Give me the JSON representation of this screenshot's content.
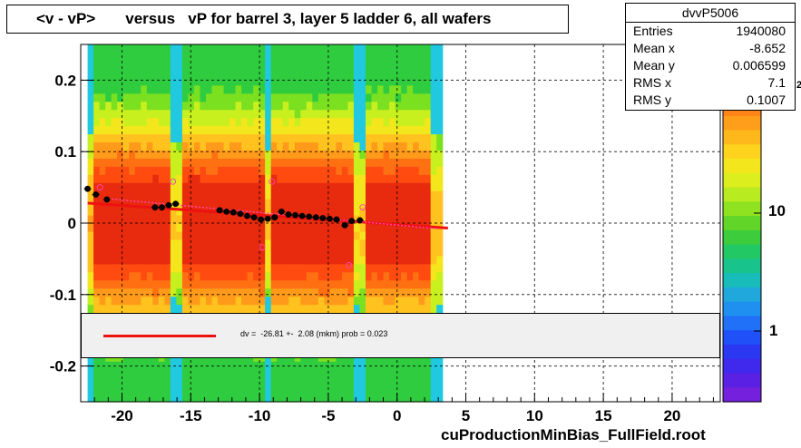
{
  "title": "<v - vP>       versus   vP for barrel 3, layer 5 ladder 6, all wafers",
  "stats": {
    "name": "dvvP5006",
    "rows": [
      {
        "label": "Entries",
        "value": "1940080"
      },
      {
        "label": "Mean x",
        "value": "-8.652"
      },
      {
        "label": "Mean y",
        "value": "0.006599"
      },
      {
        "label": "RMS x",
        "value": "7.1"
      },
      {
        "label": "RMS y",
        "value": "0.1007"
      }
    ]
  },
  "fit_text": "dv =  -26.81 +-  2.08 (mkm) prob = 0.023",
  "footer": "cuProductionMinBias_FullField.root",
  "colorbar": {
    "labels": [
      "10",
      "1"
    ],
    "partial_label": "2"
  },
  "colors": {
    "fit": "#ee1111",
    "profile": "#000000",
    "alt_points": "#ff44aa"
  },
  "chart_data": {
    "type": "heatmap",
    "title": "<v - vP>       versus   vP for barrel 3, layer 5 ladder 6, all wafers",
    "xlabel": "",
    "ylabel": "",
    "xlim": [
      -23,
      23.5
    ],
    "ylim": [
      -0.25,
      0.25
    ],
    "xticks": [
      -20,
      -15,
      -10,
      -5,
      0,
      5,
      10,
      15,
      20
    ],
    "yticks": [
      -0.2,
      -0.1,
      0,
      0.1,
      0.2
    ],
    "ytick_labels": [
      "-0.2",
      "-0.1",
      "0",
      "0.1",
      "0.2"
    ],
    "grid": true,
    "log_z": true,
    "data_x_range": [
      -22.5,
      3.3
    ],
    "profile_points": [
      {
        "x": -22.5,
        "y": 0.048
      },
      {
        "x": -21.9,
        "y": 0.04
      },
      {
        "x": -21.1,
        "y": 0.033
      },
      {
        "x": -17.6,
        "y": 0.022
      },
      {
        "x": -17.1,
        "y": 0.022
      },
      {
        "x": -16.6,
        "y": 0.025
      },
      {
        "x": -16.1,
        "y": 0.027
      },
      {
        "x": -12.9,
        "y": 0.018
      },
      {
        "x": -12.4,
        "y": 0.016
      },
      {
        "x": -11.9,
        "y": 0.015
      },
      {
        "x": -11.4,
        "y": 0.013
      },
      {
        "x": -10.9,
        "y": 0.01
      },
      {
        "x": -10.4,
        "y": 0.008
      },
      {
        "x": -9.9,
        "y": 0.005
      },
      {
        "x": -9.4,
        "y": 0.006
      },
      {
        "x": -8.9,
        "y": 0.008
      },
      {
        "x": -8.4,
        "y": 0.016
      },
      {
        "x": -7.9,
        "y": 0.012
      },
      {
        "x": -7.4,
        "y": 0.011
      },
      {
        "x": -6.9,
        "y": 0.01
      },
      {
        "x": -6.4,
        "y": 0.009
      },
      {
        "x": -5.9,
        "y": 0.008
      },
      {
        "x": -5.4,
        "y": 0.007
      },
      {
        "x": -4.9,
        "y": 0.006
      },
      {
        "x": -4.4,
        "y": 0.005
      },
      {
        "x": -3.8,
        "y": -0.003
      },
      {
        "x": -3.3,
        "y": 0.003
      },
      {
        "x": -2.7,
        "y": 0.004
      }
    ],
    "alt_points": [
      {
        "x": -21.6,
        "y": 0.05
      },
      {
        "x": -16.3,
        "y": 0.058
      },
      {
        "x": -9.8,
        "y": -0.034
      },
      {
        "x": -9.1,
        "y": 0.058
      },
      {
        "x": -3.5,
        "y": -0.059
      },
      {
        "x": -2.5,
        "y": 0.022
      }
    ],
    "fit_line": {
      "x": [
        -22.5,
        3.7
      ],
      "y": [
        0.028,
        -0.007
      ]
    }
  }
}
